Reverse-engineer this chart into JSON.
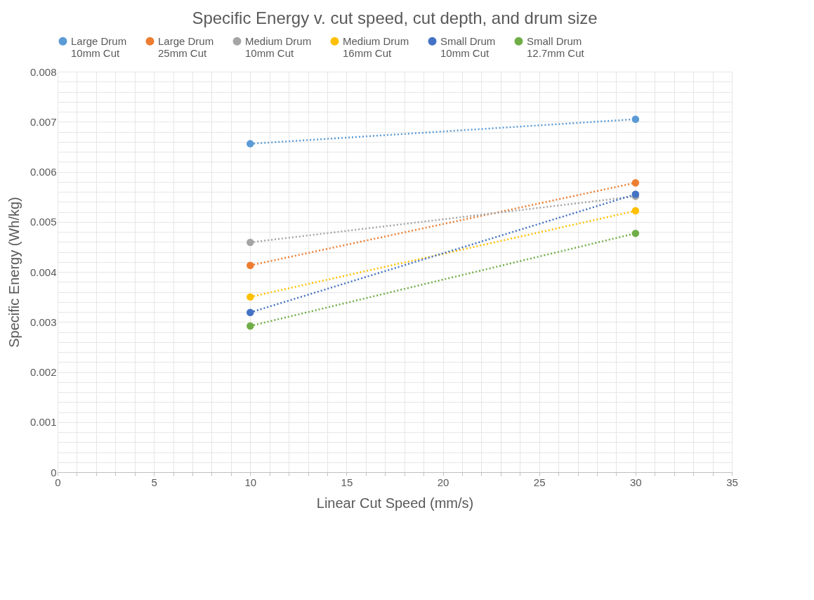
{
  "chart_data": {
    "type": "line",
    "title": "Specific Energy v. cut speed, cut depth, and drum size",
    "xlabel": "Linear Cut Speed (mm/s)",
    "ylabel": "Specific Energy (Wh/kg)",
    "x": [
      10,
      30
    ],
    "series": [
      {
        "name": "Large Drum 10mm Cut",
        "color": "#5b9bd5",
        "values": [
          0.00656,
          0.00705
        ]
      },
      {
        "name": "Large Drum 25mm Cut",
        "color": "#ed7d31",
        "values": [
          0.00413,
          0.00578
        ]
      },
      {
        "name": "Medium Drum 10mm Cut",
        "color": "#a5a5a5",
        "values": [
          0.00459,
          0.00551
        ]
      },
      {
        "name": "Medium Drum 16mm Cut",
        "color": "#ffc000",
        "values": [
          0.0035,
          0.00522
        ]
      },
      {
        "name": "Small Drum 10mm Cut",
        "color": "#4472c4",
        "values": [
          0.00319,
          0.00555
        ]
      },
      {
        "name": "Small Drum 12.7mm Cut",
        "color": "#70ad47",
        "values": [
          0.00292,
          0.00477
        ]
      }
    ],
    "xlim": [
      0,
      35
    ],
    "xticks": [
      0,
      {
        "value": 1,
        "label": null
      },
      {
        "value": 2,
        "label": null
      },
      {
        "value": 3,
        "label": null
      },
      {
        "value": 4,
        "label": null
      },
      5,
      {
        "value": 6,
        "label": null
      },
      {
        "value": 7,
        "label": null
      },
      {
        "value": 8,
        "label": null
      },
      {
        "value": 9,
        "label": null
      },
      10,
      {
        "value": 11,
        "label": null
      },
      {
        "value": 12,
        "label": null
      },
      {
        "value": 13,
        "label": null
      },
      {
        "value": 14,
        "label": null
      },
      15,
      {
        "value": 16,
        "label": null
      },
      {
        "value": 17,
        "label": null
      },
      {
        "value": 18,
        "label": null
      },
      {
        "value": 19,
        "label": null
      },
      20,
      {
        "value": 21,
        "label": null
      },
      {
        "value": 22,
        "label": null
      },
      {
        "value": 23,
        "label": null
      },
      {
        "value": 24,
        "label": null
      },
      25,
      {
        "value": 26,
        "label": null
      },
      {
        "value": 27,
        "label": null
      },
      {
        "value": 28,
        "label": null
      },
      {
        "value": 29,
        "label": null
      },
      30,
      {
        "value": 31,
        "label": null
      },
      {
        "value": 32,
        "label": null
      },
      {
        "value": 33,
        "label": null
      },
      {
        "value": 34,
        "label": null
      },
      35
    ],
    "ylim": [
      0,
      0.008
    ],
    "yticks": [
      0,
      {
        "value": 0.0002,
        "label": null
      },
      {
        "value": 0.0004,
        "label": null
      },
      {
        "value": 0.0006,
        "label": null
      },
      {
        "value": 0.0008,
        "label": null
      },
      0.001,
      {
        "value": 0.0012,
        "label": null
      },
      {
        "value": 0.0014,
        "label": null
      },
      {
        "value": 0.0016,
        "label": null
      },
      {
        "value": 0.0018,
        "label": null
      },
      0.002,
      {
        "value": 0.0022,
        "label": null
      },
      {
        "value": 0.0024,
        "label": null
      },
      {
        "value": 0.0026,
        "label": null
      },
      {
        "value": 0.0028,
        "label": null
      },
      0.003,
      {
        "value": 0.0032,
        "label": null
      },
      {
        "value": 0.0034,
        "label": null
      },
      {
        "value": 0.0036,
        "label": null
      },
      {
        "value": 0.0038,
        "label": null
      },
      0.004,
      {
        "value": 0.0042,
        "label": null
      },
      {
        "value": 0.0044,
        "label": null
      },
      {
        "value": 0.0046,
        "label": null
      },
      {
        "value": 0.0048,
        "label": null
      },
      0.005,
      {
        "value": 0.0052,
        "label": null
      },
      {
        "value": 0.0054,
        "label": null
      },
      {
        "value": 0.0056,
        "label": null
      },
      {
        "value": 0.0058,
        "label": null
      },
      0.006,
      {
        "value": 0.0062,
        "label": null
      },
      {
        "value": 0.0064,
        "label": null
      },
      {
        "value": 0.0066,
        "label": null
      },
      {
        "value": 0.0068,
        "label": null
      },
      0.007,
      {
        "value": 0.0072,
        "label": null
      },
      {
        "value": 0.0074,
        "label": null
      },
      {
        "value": 0.0076,
        "label": null
      },
      {
        "value": 0.0078,
        "label": null
      },
      0.008
    ],
    "grid": true,
    "legend": "top",
    "marker": "circle",
    "line_style": "dotted"
  }
}
